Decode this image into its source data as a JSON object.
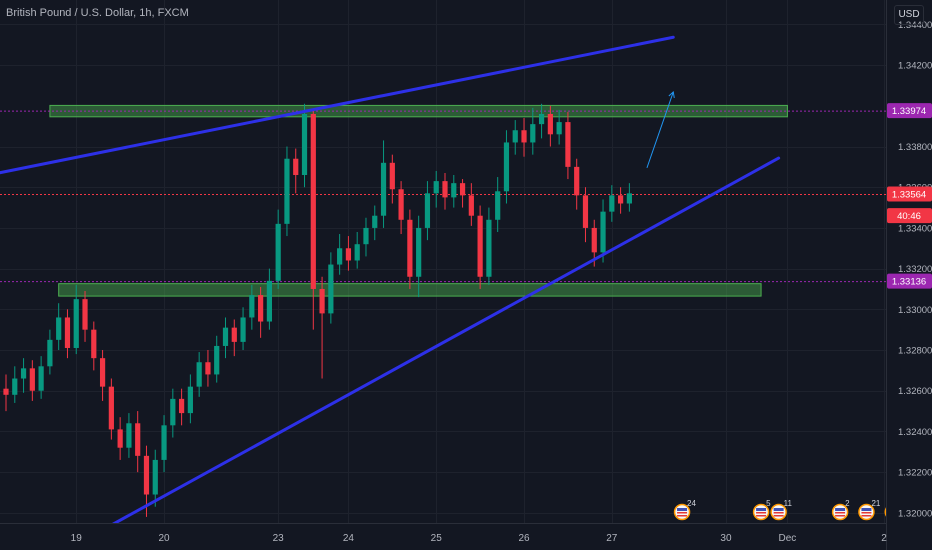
{
  "header": {
    "symbol_title": "British Pound / U.S. Dollar, 1h, FXCM",
    "currency_button": "USD"
  },
  "chart_data": {
    "type": "candlestick",
    "ylim": [
      1.3195,
      1.3452
    ],
    "xlim": [
      0,
      932
    ],
    "y_ticks": [
      "1.34400",
      "1.34200",
      "1.33800",
      "1.33600",
      "1.33400",
      "1.33200",
      "1.33000",
      "1.32800",
      "1.32600",
      "1.32400",
      "1.32200",
      "1.32000"
    ],
    "y_tick_values": [
      1.344,
      1.342,
      1.338,
      1.336,
      1.334,
      1.332,
      1.33,
      1.328,
      1.326,
      1.324,
      1.322,
      1.32
    ],
    "x_ticks": [
      {
        "label": "19",
        "bar": 8
      },
      {
        "label": "20",
        "bar": 18
      },
      {
        "label": "23",
        "bar": 31
      },
      {
        "label": "24",
        "bar": 39
      },
      {
        "label": "25",
        "bar": 49
      },
      {
        "label": "26",
        "bar": 59
      },
      {
        "label": "27",
        "bar": 69
      },
      {
        "label": "30",
        "bar": 82
      },
      {
        "label": "Dec",
        "bar": 89
      },
      {
        "label": "2",
        "bar": 100
      }
    ],
    "price_tags": [
      {
        "label": "1.33974",
        "value": 1.33974,
        "color": "#9c27b0"
      },
      {
        "label": "1.33564",
        "value": 1.33564,
        "color": "#f23645"
      },
      {
        "label": "40:46",
        "value": 1.33458,
        "color": "#f23645"
      },
      {
        "label": "1.33136",
        "value": 1.33136,
        "color": "#9c27b0"
      }
    ],
    "current_price": 1.33564,
    "grid": true,
    "candles": [
      [
        1.3261,
        1.3258,
        1.325,
        1.3268
      ],
      [
        1.3258,
        1.3266,
        1.3254,
        1.3272
      ],
      [
        1.3266,
        1.3271,
        1.3259,
        1.3276
      ],
      [
        1.3271,
        1.326,
        1.3255,
        1.3275
      ],
      [
        1.326,
        1.3272,
        1.3256,
        1.3277
      ],
      [
        1.3272,
        1.3285,
        1.3268,
        1.329
      ],
      [
        1.3285,
        1.3296,
        1.328,
        1.3303
      ],
      [
        1.3296,
        1.3281,
        1.3276,
        1.33
      ],
      [
        1.3281,
        1.3305,
        1.3278,
        1.3312
      ],
      [
        1.3305,
        1.329,
        1.3284,
        1.3309
      ],
      [
        1.329,
        1.3276,
        1.327,
        1.3294
      ],
      [
        1.3276,
        1.3262,
        1.3255,
        1.328
      ],
      [
        1.3262,
        1.3241,
        1.3236,
        1.3266
      ],
      [
        1.3241,
        1.3232,
        1.3226,
        1.3247
      ],
      [
        1.3232,
        1.3244,
        1.3227,
        1.3249
      ],
      [
        1.3244,
        1.3228,
        1.322,
        1.325
      ],
      [
        1.3228,
        1.3209,
        1.3198,
        1.3233
      ],
      [
        1.3209,
        1.3226,
        1.3203,
        1.3231
      ],
      [
        1.3226,
        1.3243,
        1.322,
        1.3248
      ],
      [
        1.3243,
        1.3256,
        1.3237,
        1.3261
      ],
      [
        1.3256,
        1.3249,
        1.3243,
        1.3261
      ],
      [
        1.3249,
        1.3262,
        1.3244,
        1.3268
      ],
      [
        1.3262,
        1.3274,
        1.3257,
        1.3279
      ],
      [
        1.3274,
        1.3268,
        1.3262,
        1.328
      ],
      [
        1.3268,
        1.3282,
        1.3264,
        1.3287
      ],
      [
        1.3282,
        1.3291,
        1.3276,
        1.3296
      ],
      [
        1.3291,
        1.3284,
        1.3277,
        1.3295
      ],
      [
        1.3284,
        1.3296,
        1.328,
        1.3301
      ],
      [
        1.3296,
        1.3307,
        1.329,
        1.3312
      ],
      [
        1.3307,
        1.3294,
        1.3286,
        1.3311
      ],
      [
        1.3294,
        1.3314,
        1.329,
        1.332
      ],
      [
        1.3314,
        1.3342,
        1.331,
        1.3349
      ],
      [
        1.3342,
        1.3374,
        1.3336,
        1.338
      ],
      [
        1.3374,
        1.3366,
        1.3357,
        1.3379
      ],
      [
        1.3366,
        1.3396,
        1.336,
        1.3401
      ],
      [
        1.3396,
        1.331,
        1.329,
        1.3398
      ],
      [
        1.331,
        1.3298,
        1.3266,
        1.3316
      ],
      [
        1.3298,
        1.3322,
        1.3293,
        1.3328
      ],
      [
        1.3322,
        1.333,
        1.3317,
        1.3337
      ],
      [
        1.333,
        1.3324,
        1.3319,
        1.3336
      ],
      [
        1.3324,
        1.3332,
        1.332,
        1.3338
      ],
      [
        1.3332,
        1.334,
        1.3326,
        1.3345
      ],
      [
        1.334,
        1.3346,
        1.3334,
        1.3351
      ],
      [
        1.3346,
        1.3372,
        1.334,
        1.3383
      ],
      [
        1.3372,
        1.3359,
        1.3352,
        1.3376
      ],
      [
        1.3359,
        1.3344,
        1.3337,
        1.3363
      ],
      [
        1.3344,
        1.3316,
        1.331,
        1.3349
      ],
      [
        1.3316,
        1.334,
        1.3306,
        1.3346
      ],
      [
        1.334,
        1.3357,
        1.3334,
        1.3363
      ],
      [
        1.3357,
        1.3363,
        1.335,
        1.3368
      ],
      [
        1.3363,
        1.3355,
        1.3349,
        1.3367
      ],
      [
        1.3355,
        1.3362,
        1.335,
        1.3366
      ],
      [
        1.3362,
        1.3356,
        1.335,
        1.3364
      ],
      [
        1.3356,
        1.3346,
        1.3341,
        1.3362
      ],
      [
        1.3346,
        1.3316,
        1.331,
        1.3351
      ],
      [
        1.3316,
        1.3344,
        1.3312,
        1.335
      ],
      [
        1.3344,
        1.3358,
        1.3338,
        1.3365
      ],
      [
        1.3358,
        1.3382,
        1.3352,
        1.3388
      ],
      [
        1.3382,
        1.3388,
        1.3376,
        1.3393
      ],
      [
        1.3388,
        1.3382,
        1.3375,
        1.3394
      ],
      [
        1.3382,
        1.3391,
        1.3376,
        1.3399
      ],
      [
        1.3391,
        1.3396,
        1.3384,
        1.3401
      ],
      [
        1.3396,
        1.3386,
        1.338,
        1.34
      ],
      [
        1.3386,
        1.3392,
        1.3381,
        1.3398
      ],
      [
        1.3392,
        1.337,
        1.3364,
        1.3397
      ],
      [
        1.337,
        1.3356,
        1.3349,
        1.3374
      ],
      [
        1.3356,
        1.334,
        1.3333,
        1.336
      ],
      [
        1.334,
        1.3328,
        1.3321,
        1.3344
      ],
      [
        1.3328,
        1.3348,
        1.3323,
        1.3354
      ],
      [
        1.3348,
        1.3356,
        1.3343,
        1.3361
      ],
      [
        1.3356,
        1.3352,
        1.3347,
        1.336
      ],
      [
        1.3352,
        1.3357,
        1.3348,
        1.3362
      ]
    ],
    "drawings": {
      "resistance_zone": {
        "start_bar": 5,
        "end_bar": 89,
        "top": 1.34002,
        "bottom": 1.33946,
        "color": "#4caf50"
      },
      "support_zone": {
        "start_bar": 6,
        "end_bar": 86,
        "top": 1.33126,
        "bottom": 1.33065,
        "color": "#4caf50"
      },
      "upper_trendline": {
        "from": {
          "bar": -2,
          "value": 1.3366
        },
        "to": {
          "bar": 76,
          "value": 1.34337
        },
        "color": "#2d30e8"
      },
      "lower_trendline": {
        "from": {
          "bar": 12,
          "value": 1.3194
        },
        "to": {
          "bar": 88,
          "value": 1.33743
        },
        "color": "#2d30e8"
      },
      "projection_arrow": {
        "from": {
          "bar": 73,
          "value": 1.33695
        },
        "to": {
          "bar": 76,
          "value": 1.34068
        },
        "color": "#2196f3"
      },
      "hline_upper": {
        "value": 1.33974,
        "color": "#9c27b0"
      },
      "hline_lower": {
        "value": 1.33136,
        "color": "#9c27b0"
      },
      "hline_current": {
        "value": 1.33564,
        "color": "#f23645"
      }
    },
    "events": [
      {
        "bar": 77,
        "count": "24"
      },
      {
        "bar": 86,
        "count": "5"
      },
      {
        "bar": 88,
        "count": "11"
      },
      {
        "bar": 95,
        "count": "2"
      },
      {
        "bar": 98,
        "count": "21"
      },
      {
        "bar": 101,
        "count": "8"
      }
    ]
  }
}
